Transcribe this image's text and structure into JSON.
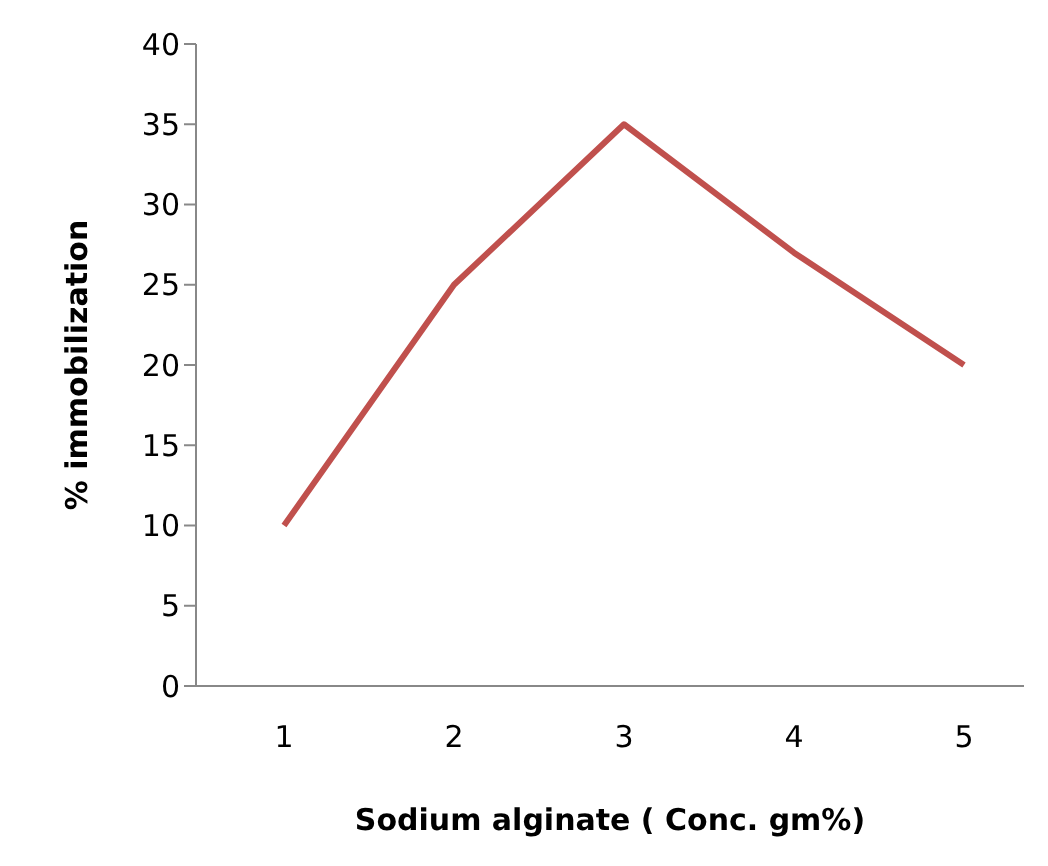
{
  "chart_data": {
    "type": "line",
    "xlabel": "Sodium alginate ( Conc. gm%)",
    "ylabel": "% immobilization",
    "categories": [
      "1",
      "2",
      "3",
      "4",
      "5"
    ],
    "series": [
      {
        "color": "#c0504d",
        "values": [
          10,
          25,
          35,
          27,
          20
        ]
      }
    ],
    "ylim": [
      0,
      40
    ],
    "yticks": [
      0,
      5,
      10,
      15,
      20,
      25,
      30,
      35,
      40
    ],
    "grid": false,
    "legend": false,
    "marker": "none",
    "line_style": "solid"
  }
}
